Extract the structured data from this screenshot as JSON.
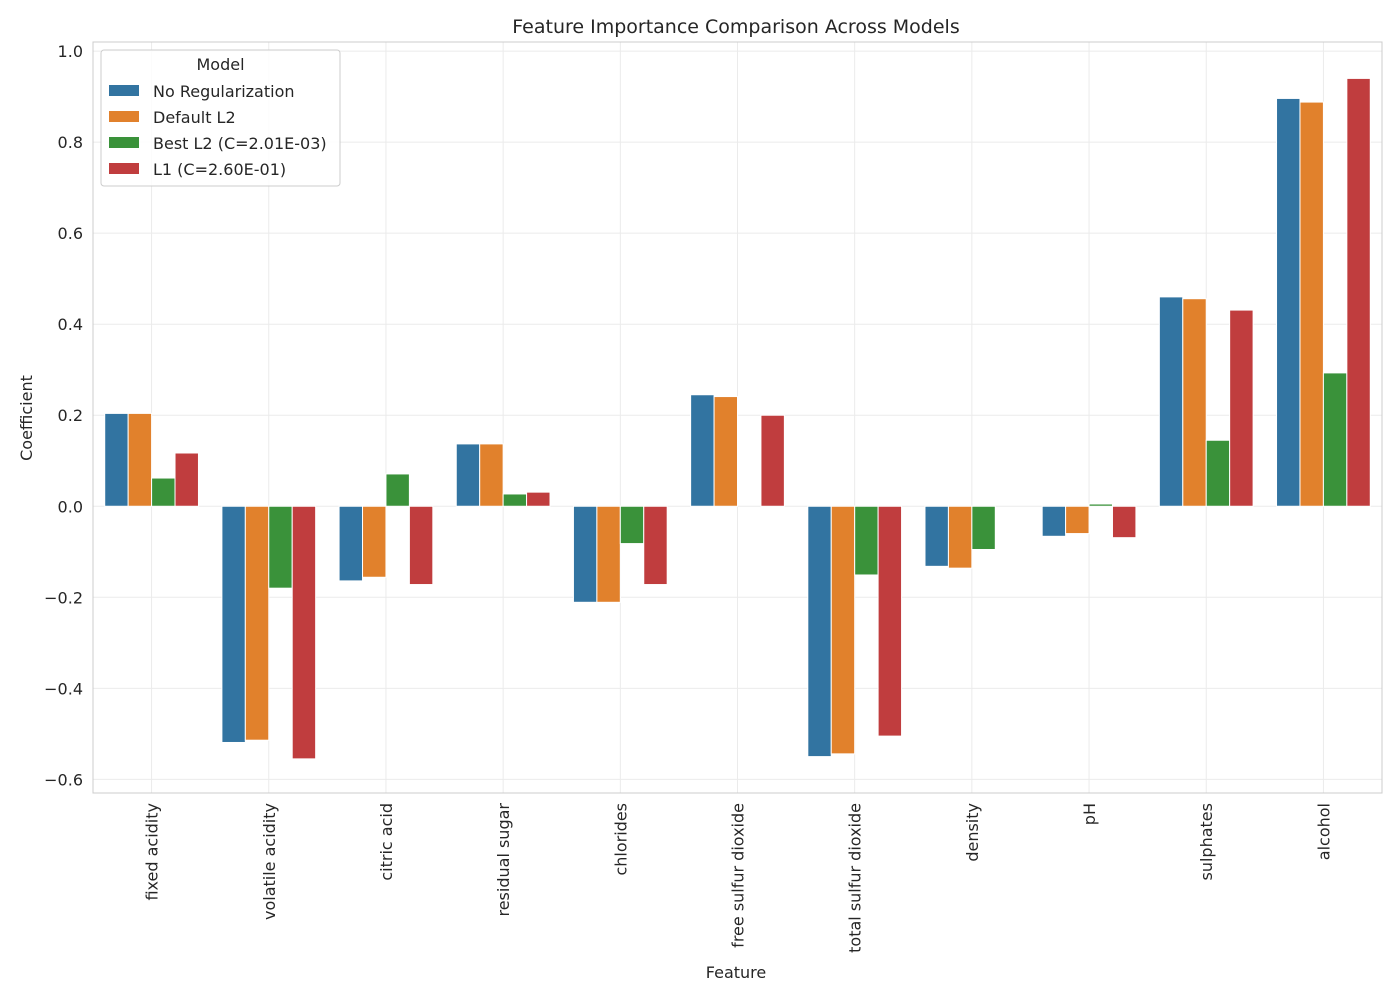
{
  "chart_data": {
    "type": "bar",
    "title": "Feature Importance Comparison Across Models",
    "xlabel": "Feature",
    "ylabel": "Coefficient",
    "ylim": [
      -0.63,
      1.02
    ],
    "yticks": [
      -0.6,
      -0.4,
      -0.2,
      0.0,
      0.2,
      0.4,
      0.6,
      0.8,
      1.0
    ],
    "ytick_labels": [
      "−0.6",
      "−0.4",
      "−0.2",
      "0.0",
      "0.2",
      "0.4",
      "0.6",
      "0.8",
      "1.0"
    ],
    "grid": true,
    "legend": {
      "title": "Model",
      "placement": "top-left"
    },
    "categories": [
      "fixed acidity",
      "volatile acidity",
      "citric acid",
      "residual sugar",
      "chlorides",
      "free sulfur dioxide",
      "total sulfur dioxide",
      "density",
      "pH",
      "sulphates",
      "alcohol"
    ],
    "series": [
      {
        "name": "No Regularization",
        "color": "#3274a1",
        "values": [
          0.204,
          -0.519,
          -0.164,
          0.137,
          -0.211,
          0.245,
          -0.55,
          -0.132,
          -0.066,
          0.46,
          0.896
        ]
      },
      {
        "name": "Default L2",
        "color": "#e1812c",
        "values": [
          0.204,
          -0.514,
          -0.156,
          0.137,
          -0.211,
          0.241,
          -0.544,
          -0.136,
          -0.06,
          0.456,
          0.888
        ]
      },
      {
        "name": "Best L2 (C=2.01E-03)",
        "color": "#3a923a",
        "values": [
          0.062,
          -0.18,
          0.071,
          0.027,
          -0.082,
          0.0,
          -0.151,
          -0.095,
          0.005,
          0.145,
          0.293
        ]
      },
      {
        "name": "L1 (C=2.60E-01)",
        "color": "#c03d3e",
        "values": [
          0.117,
          -0.555,
          -0.172,
          0.031,
          -0.172,
          0.2,
          -0.505,
          0.0,
          -0.069,
          0.431,
          0.94
        ]
      }
    ]
  }
}
